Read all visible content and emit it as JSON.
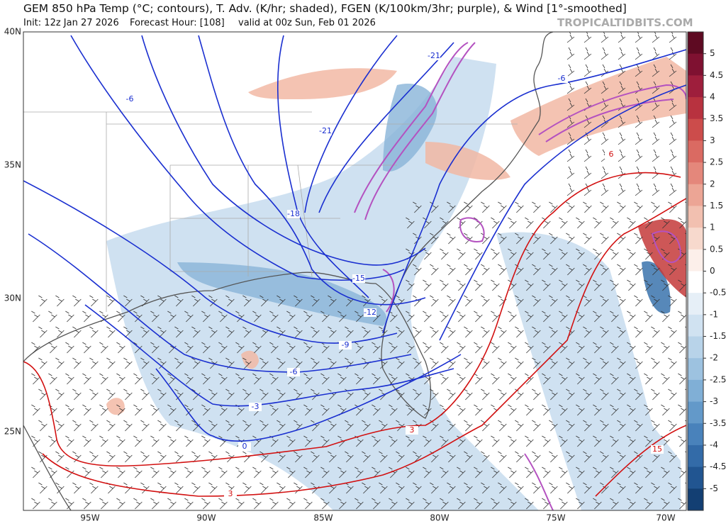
{
  "header": {
    "title": "GEM 850 hPa Temp (°C; contours), T. Adv. (K/hr; shaded), FGEN (K/100km/3hr; purple), & Wind [1°-smoothed]",
    "init": "Init: 12z Jan 27 2026",
    "forecast_hour": "Forecast Hour: [108]",
    "valid": "valid at 00z Sun, Feb 01 2026",
    "credit": "TROPICALTIDBITS.COM"
  },
  "map": {
    "latitude_labels": [
      "40N",
      "35N",
      "30N",
      "25N"
    ],
    "longitude_labels": [
      "95W",
      "90W",
      "85W",
      "80W",
      "75W",
      "70W"
    ],
    "contour_labels": [
      "-21",
      "-6",
      "-6",
      "-21",
      "6",
      "-18",
      "-15",
      "-12",
      "-9",
      "-6",
      "-3",
      "0",
      "3",
      "15",
      "3"
    ]
  },
  "colorbar": {
    "ticks": [
      5,
      4.5,
      4,
      3.5,
      3,
      2.5,
      2,
      1.5,
      1,
      0.5,
      0,
      -0.5,
      -1,
      -1.5,
      -2,
      -2.5,
      -3,
      -3.5,
      -4,
      -4.5,
      -5
    ]
  }
}
